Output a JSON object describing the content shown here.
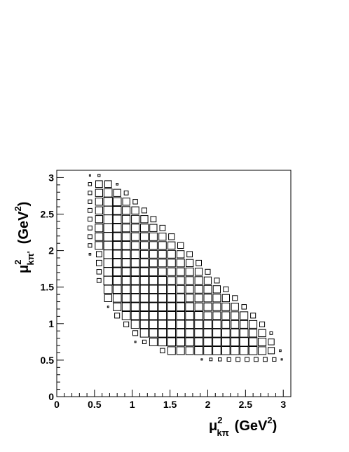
{
  "chart_data": {
    "type": "heatmap",
    "style": "box",
    "xlabel": {
      "base": "μ",
      "sup": "2",
      "sub": "kπ",
      "unit_open": "(GeV",
      "unit_sup": "2",
      "unit_close": ")"
    },
    "ylabel": {
      "base": "μ",
      "sup": "2",
      "sub": "kπ'",
      "unit_open": "(GeV",
      "unit_sup": "2",
      "unit_close": ")"
    },
    "xlim": [
      0,
      3.1
    ],
    "ylim": [
      0,
      3.1
    ],
    "x_ticks": [
      "0",
      "0.5",
      "1",
      "1.5",
      "2",
      "2.5",
      "3"
    ],
    "y_ticks": [
      "0",
      "0.5",
      "1",
      "1.5",
      "2",
      "2.5",
      "3"
    ],
    "x_tick_values": [
      0,
      0.5,
      1,
      1.5,
      2,
      2.5,
      3
    ],
    "y_tick_values": [
      0,
      0.5,
      1,
      1.5,
      2,
      2.5,
      3
    ],
    "bin_width": 0.12,
    "bin_x_start": 0.42,
    "bin_y_start": 0.43,
    "grid": false,
    "legend": "none",
    "density_note": "relative bin content 0-1, box side proportional to content",
    "rows": [
      {
        "y": 3.03,
        "cells": [
          [
            0.44,
            0.15
          ],
          [
            0.56,
            0.25
          ]
        ]
      },
      {
        "y": 2.91,
        "cells": [
          [
            0.44,
            0.35
          ],
          [
            0.56,
            0.75
          ],
          [
            0.68,
            0.75
          ],
          [
            0.8,
            0.2
          ]
        ]
      },
      {
        "y": 2.79,
        "cells": [
          [
            0.44,
            0.4
          ],
          [
            0.56,
            0.8
          ],
          [
            0.68,
            0.9
          ],
          [
            0.8,
            0.8
          ],
          [
            0.92,
            0.45
          ]
        ]
      },
      {
        "y": 2.67,
        "cells": [
          [
            0.44,
            0.4
          ],
          [
            0.56,
            0.8
          ],
          [
            0.68,
            0.95
          ],
          [
            0.8,
            0.9
          ],
          [
            0.92,
            0.8
          ],
          [
            1.04,
            0.5
          ]
        ]
      },
      {
        "y": 2.55,
        "cells": [
          [
            0.44,
            0.45
          ],
          [
            0.56,
            0.8
          ],
          [
            0.68,
            0.95
          ],
          [
            0.8,
            0.9
          ],
          [
            0.92,
            0.85
          ],
          [
            1.04,
            0.8
          ],
          [
            1.16,
            0.55
          ]
        ]
      },
      {
        "y": 2.43,
        "cells": [
          [
            0.44,
            0.45
          ],
          [
            0.56,
            0.8
          ],
          [
            0.68,
            0.95
          ],
          [
            0.8,
            0.9
          ],
          [
            0.92,
            0.85
          ],
          [
            1.04,
            0.85
          ],
          [
            1.16,
            0.8
          ],
          [
            1.28,
            0.6
          ]
        ]
      },
      {
        "y": 2.31,
        "cells": [
          [
            0.44,
            0.45
          ],
          [
            0.56,
            0.85
          ],
          [
            0.68,
            0.95
          ],
          [
            0.8,
            0.9
          ],
          [
            0.92,
            0.85
          ],
          [
            1.04,
            0.85
          ],
          [
            1.16,
            0.85
          ],
          [
            1.28,
            0.8
          ],
          [
            1.4,
            0.6
          ]
        ]
      },
      {
        "y": 2.19,
        "cells": [
          [
            0.44,
            0.45
          ],
          [
            0.56,
            0.85
          ],
          [
            0.68,
            0.95
          ],
          [
            0.8,
            0.9
          ],
          [
            0.92,
            0.9
          ],
          [
            1.04,
            0.85
          ],
          [
            1.16,
            0.85
          ],
          [
            1.28,
            0.85
          ],
          [
            1.4,
            0.8
          ],
          [
            1.52,
            0.65
          ]
        ]
      },
      {
        "y": 2.07,
        "cells": [
          [
            0.44,
            0.4
          ],
          [
            0.56,
            0.85
          ],
          [
            0.68,
            0.95
          ],
          [
            0.8,
            0.9
          ],
          [
            0.92,
            0.9
          ],
          [
            1.04,
            0.85
          ],
          [
            1.16,
            0.85
          ],
          [
            1.28,
            0.85
          ],
          [
            1.4,
            0.85
          ],
          [
            1.52,
            0.8
          ],
          [
            1.64,
            0.65
          ]
        ]
      },
      {
        "y": 1.95,
        "cells": [
          [
            0.44,
            0.2
          ],
          [
            0.56,
            0.6
          ],
          [
            0.68,
            0.95
          ],
          [
            0.8,
            0.9
          ],
          [
            0.92,
            0.9
          ],
          [
            1.04,
            0.9
          ],
          [
            1.16,
            0.85
          ],
          [
            1.28,
            0.85
          ],
          [
            1.4,
            0.85
          ],
          [
            1.52,
            0.85
          ],
          [
            1.64,
            0.8
          ],
          [
            1.76,
            0.6
          ]
        ]
      },
      {
        "y": 1.83,
        "cells": [
          [
            0.56,
            0.6
          ],
          [
            0.68,
            0.95
          ],
          [
            0.8,
            0.9
          ],
          [
            0.92,
            0.9
          ],
          [
            1.04,
            0.9
          ],
          [
            1.16,
            0.9
          ],
          [
            1.28,
            0.85
          ],
          [
            1.4,
            0.85
          ],
          [
            1.52,
            0.85
          ],
          [
            1.64,
            0.85
          ],
          [
            1.76,
            0.8
          ],
          [
            1.88,
            0.6
          ]
        ]
      },
      {
        "y": 1.71,
        "cells": [
          [
            0.56,
            0.5
          ],
          [
            0.68,
            0.95
          ],
          [
            0.8,
            0.9
          ],
          [
            0.92,
            0.9
          ],
          [
            1.04,
            0.9
          ],
          [
            1.16,
            0.9
          ],
          [
            1.28,
            0.9
          ],
          [
            1.4,
            0.85
          ],
          [
            1.52,
            0.85
          ],
          [
            1.64,
            0.85
          ],
          [
            1.76,
            0.85
          ],
          [
            1.88,
            0.8
          ],
          [
            2.0,
            0.55
          ]
        ]
      },
      {
        "y": 1.59,
        "cells": [
          [
            0.56,
            0.45
          ],
          [
            0.68,
            0.95
          ],
          [
            0.8,
            0.9
          ],
          [
            0.92,
            0.9
          ],
          [
            1.04,
            0.9
          ],
          [
            1.16,
            0.9
          ],
          [
            1.28,
            0.9
          ],
          [
            1.4,
            0.9
          ],
          [
            1.52,
            0.85
          ],
          [
            1.64,
            0.85
          ],
          [
            1.76,
            0.85
          ],
          [
            1.88,
            0.85
          ],
          [
            2.0,
            0.8
          ],
          [
            2.12,
            0.55
          ]
        ]
      },
      {
        "y": 1.47,
        "cells": [
          [
            0.68,
            0.9
          ],
          [
            0.8,
            0.9
          ],
          [
            0.92,
            0.9
          ],
          [
            1.04,
            0.9
          ],
          [
            1.16,
            0.9
          ],
          [
            1.28,
            0.9
          ],
          [
            1.4,
            0.9
          ],
          [
            1.52,
            0.9
          ],
          [
            1.64,
            0.85
          ],
          [
            1.76,
            0.85
          ],
          [
            1.88,
            0.85
          ],
          [
            2.0,
            0.85
          ],
          [
            2.12,
            0.8
          ],
          [
            2.24,
            0.55
          ]
        ]
      },
      {
        "y": 1.35,
        "cells": [
          [
            0.68,
            0.8
          ],
          [
            0.8,
            0.9
          ],
          [
            0.92,
            0.9
          ],
          [
            1.04,
            0.9
          ],
          [
            1.16,
            0.9
          ],
          [
            1.28,
            0.9
          ],
          [
            1.4,
            0.9
          ],
          [
            1.52,
            0.9
          ],
          [
            1.64,
            0.9
          ],
          [
            1.76,
            0.85
          ],
          [
            1.88,
            0.85
          ],
          [
            2.0,
            0.85
          ],
          [
            2.12,
            0.85
          ],
          [
            2.24,
            0.8
          ],
          [
            2.36,
            0.55
          ]
        ]
      },
      {
        "y": 1.23,
        "cells": [
          [
            0.68,
            0.15
          ],
          [
            0.8,
            0.85
          ],
          [
            0.92,
            0.9
          ],
          [
            1.04,
            0.9
          ],
          [
            1.16,
            0.9
          ],
          [
            1.28,
            0.9
          ],
          [
            1.4,
            0.9
          ],
          [
            1.52,
            0.9
          ],
          [
            1.64,
            0.9
          ],
          [
            1.76,
            0.9
          ],
          [
            1.88,
            0.85
          ],
          [
            2.0,
            0.85
          ],
          [
            2.12,
            0.85
          ],
          [
            2.24,
            0.85
          ],
          [
            2.36,
            0.8
          ],
          [
            2.48,
            0.5
          ]
        ]
      },
      {
        "y": 1.11,
        "cells": [
          [
            0.8,
            0.55
          ],
          [
            0.92,
            0.9
          ],
          [
            1.04,
            0.9
          ],
          [
            1.16,
            0.9
          ],
          [
            1.28,
            0.9
          ],
          [
            1.4,
            0.9
          ],
          [
            1.52,
            0.9
          ],
          [
            1.64,
            0.9
          ],
          [
            1.76,
            0.9
          ],
          [
            1.88,
            0.9
          ],
          [
            2.0,
            0.85
          ],
          [
            2.12,
            0.85
          ],
          [
            2.24,
            0.85
          ],
          [
            2.36,
            0.85
          ],
          [
            2.48,
            0.85
          ],
          [
            2.6,
            0.55
          ]
        ]
      },
      {
        "y": 0.99,
        "cells": [
          [
            0.92,
            0.55
          ],
          [
            1.04,
            0.9
          ],
          [
            1.16,
            0.9
          ],
          [
            1.28,
            0.9
          ],
          [
            1.4,
            0.9
          ],
          [
            1.52,
            0.9
          ],
          [
            1.64,
            0.9
          ],
          [
            1.76,
            0.9
          ],
          [
            1.88,
            0.9
          ],
          [
            2.0,
            0.9
          ],
          [
            2.12,
            0.9
          ],
          [
            2.24,
            0.85
          ],
          [
            2.36,
            0.85
          ],
          [
            2.48,
            0.85
          ],
          [
            2.6,
            0.85
          ],
          [
            2.72,
            0.55
          ]
        ]
      },
      {
        "y": 0.87,
        "cells": [
          [
            1.04,
            0.55
          ],
          [
            1.16,
            0.9
          ],
          [
            1.28,
            0.9
          ],
          [
            1.4,
            0.9
          ],
          [
            1.52,
            0.9
          ],
          [
            1.64,
            0.9
          ],
          [
            1.76,
            0.9
          ],
          [
            1.88,
            0.9
          ],
          [
            2.0,
            0.9
          ],
          [
            2.12,
            0.9
          ],
          [
            2.24,
            0.9
          ],
          [
            2.36,
            0.9
          ],
          [
            2.48,
            0.9
          ],
          [
            2.6,
            0.85
          ],
          [
            2.72,
            0.8
          ],
          [
            2.84,
            0.3
          ]
        ]
      },
      {
        "y": 0.75,
        "cells": [
          [
            1.04,
            0.15
          ],
          [
            1.16,
            0.4
          ],
          [
            1.28,
            0.85
          ],
          [
            1.4,
            0.9
          ],
          [
            1.52,
            0.9
          ],
          [
            1.64,
            0.9
          ],
          [
            1.76,
            0.9
          ],
          [
            1.88,
            0.9
          ],
          [
            2.0,
            0.9
          ],
          [
            2.12,
            0.9
          ],
          [
            2.24,
            0.9
          ],
          [
            2.36,
            0.9
          ],
          [
            2.48,
            0.95
          ],
          [
            2.6,
            0.9
          ],
          [
            2.72,
            0.85
          ],
          [
            2.84,
            0.65
          ]
        ]
      },
      {
        "y": 0.63,
        "cells": [
          [
            1.4,
            0.5
          ],
          [
            1.52,
            0.85
          ],
          [
            1.64,
            0.85
          ],
          [
            1.76,
            0.85
          ],
          [
            1.88,
            0.9
          ],
          [
            2.0,
            0.9
          ],
          [
            2.12,
            0.9
          ],
          [
            2.24,
            0.9
          ],
          [
            2.36,
            0.9
          ],
          [
            2.48,
            0.9
          ],
          [
            2.6,
            0.9
          ],
          [
            2.72,
            0.85
          ],
          [
            2.84,
            0.7
          ],
          [
            2.96,
            0.2
          ]
        ]
      },
      {
        "y": 0.51,
        "cells": [
          [
            1.92,
            0.15
          ],
          [
            2.04,
            0.3
          ],
          [
            2.16,
            0.35
          ],
          [
            2.28,
            0.4
          ],
          [
            2.4,
            0.45
          ],
          [
            2.52,
            0.45
          ],
          [
            2.64,
            0.45
          ],
          [
            2.76,
            0.45
          ],
          [
            2.88,
            0.4
          ],
          [
            2.98,
            0.12
          ]
        ]
      }
    ]
  }
}
